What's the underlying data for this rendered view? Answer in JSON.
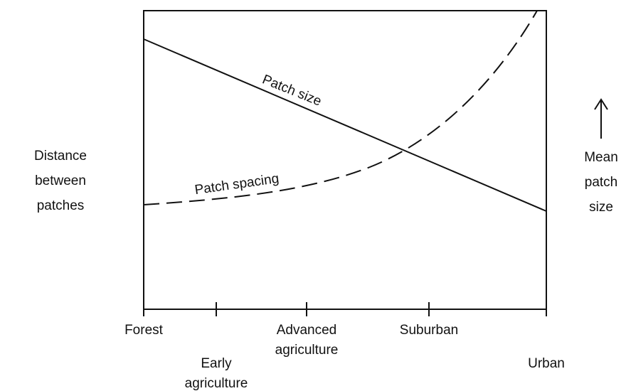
{
  "left_label": [
    "Distance",
    "between",
    "patches"
  ],
  "right_label": [
    "Mean",
    "patch",
    "size"
  ],
  "curves": {
    "patch_size": "Patch size",
    "patch_spacing": "Patch spacing"
  },
  "stages": [
    [
      "Forest"
    ],
    [
      "Early",
      "agriculture"
    ],
    [
      "Advanced",
      "agriculture"
    ],
    [
      "Suburban"
    ],
    [
      "Urban"
    ]
  ]
}
